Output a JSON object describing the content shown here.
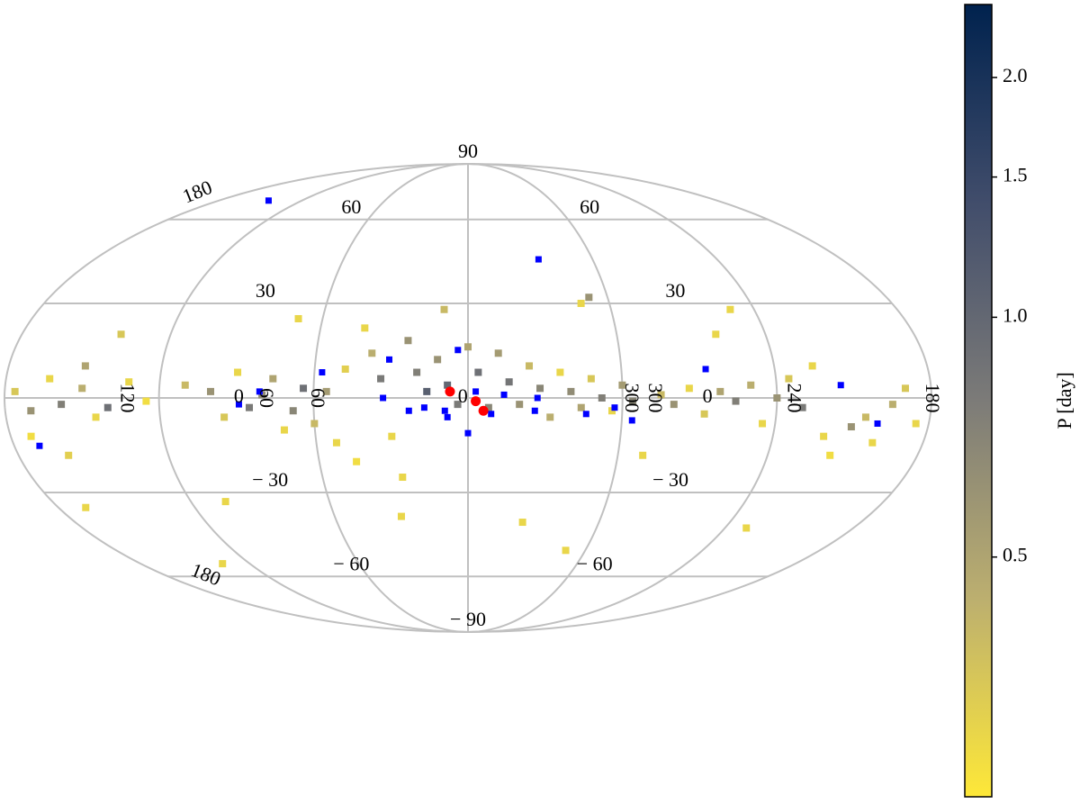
{
  "chart_data": {
    "type": "scatter",
    "projection": "mollweide",
    "meridians": [
      -180,
      -120,
      -60,
      0,
      60,
      120,
      180
    ],
    "parallels": [
      -60,
      -30,
      0,
      30,
      60
    ],
    "grid_color": "#c0c0c0",
    "xticks": [
      {
        "value": -133,
        "label": "120"
      },
      {
        "value": -89,
        "label": "0"
      },
      {
        "value": -79,
        "label": "60"
      },
      {
        "value": -59,
        "label": "60"
      },
      {
        "value": -2,
        "label": "0"
      },
      {
        "value": 63,
        "label": "300"
      },
      {
        "value": 72,
        "label": "300"
      },
      {
        "value": 93,
        "label": "0"
      },
      {
        "value": 126,
        "label": "240"
      },
      {
        "value": 180,
        "label": "180"
      }
    ],
    "yticks": [
      {
        "value": 90,
        "label": "90"
      },
      {
        "value": 60,
        "label": "60"
      },
      {
        "value": 30,
        "label": "30"
      },
      {
        "value": -30,
        "label": "− 30"
      },
      {
        "value": -60,
        "label": "− 60"
      },
      {
        "value": -90,
        "label": "− 90"
      }
    ],
    "edge_labels": [
      "180",
      "180"
    ],
    "x": [
      -176,
      -170,
      -163,
      -158,
      -150,
      -145,
      -172,
      -160,
      -150,
      -140,
      -132,
      -125,
      -110,
      -100,
      -95,
      -90,
      -85,
      -80,
      -76,
      -72,
      -68,
      -64,
      -60,
      -55,
      -52,
      -48,
      -45,
      -42,
      -38,
      -34,
      -30,
      -27,
      -24,
      -20,
      -16,
      -12,
      -8,
      -4,
      0,
      4,
      8,
      12,
      16,
      20,
      24,
      28,
      32,
      36,
      40,
      44,
      48,
      52,
      56,
      60,
      64,
      70,
      75,
      80,
      86,
      92,
      98,
      104,
      110,
      115,
      120,
      125,
      130,
      135,
      140,
      145,
      150,
      155,
      160,
      165,
      170,
      175,
      -168,
      -105,
      -30,
      50,
      48,
      52,
      130,
      -135,
      110,
      -70,
      -140,
      100,
      25,
      -10
    ],
    "y": [
      2,
      -4,
      6,
      -2,
      3,
      -6,
      -12,
      -18,
      10,
      -3,
      5,
      -1,
      4,
      2,
      -6,
      8,
      -3,
      1,
      6,
      -10,
      -4,
      3,
      -8,
      2,
      -14,
      9,
      -20,
      22,
      14,
      6,
      -12,
      -25,
      18,
      8,
      2,
      12,
      4,
      -2,
      16,
      8,
      -3,
      14,
      5,
      -2,
      10,
      3,
      -6,
      8,
      2,
      -3,
      6,
      0,
      -4,
      4,
      -1,
      -18,
      1,
      -2,
      3,
      -5,
      2,
      -1,
      4,
      -8,
      0,
      6,
      -3,
      10,
      -12,
      -18,
      -9,
      -6,
      -14,
      -2,
      3,
      -8,
      -35,
      -33,
      -38,
      -50,
      30,
      32,
      -42,
      -55,
      28,
      25,
      20,
      20,
      -40,
      28
    ],
    "values": [
      0.35,
      0.6,
      0.3,
      0.75,
      0.45,
      0.3,
      0.28,
      0.32,
      0.5,
      0.9,
      0.3,
      0.28,
      0.4,
      0.6,
      0.35,
      0.3,
      0.8,
      0.65,
      0.5,
      0.3,
      0.7,
      0.9,
      0.4,
      0.55,
      0.3,
      0.32,
      0.28,
      0.3,
      0.45,
      0.8,
      0.3,
      0.3,
      0.6,
      0.75,
      1.1,
      0.6,
      1.0,
      0.8,
      0.5,
      0.9,
      0.7,
      0.55,
      0.85,
      0.6,
      0.4,
      0.7,
      0.45,
      0.3,
      0.65,
      0.5,
      0.35,
      0.75,
      0.3,
      0.55,
      0.7,
      0.3,
      0.4,
      0.6,
      0.3,
      0.35,
      0.5,
      0.75,
      0.45,
      0.3,
      0.6,
      0.35,
      0.8,
      0.3,
      0.3,
      0.28,
      0.6,
      0.4,
      0.3,
      0.45,
      0.35,
      0.3,
      0.3,
      0.3,
      0.3,
      0.3,
      0.3,
      0.6,
      0.3,
      0.3,
      0.3,
      0.3,
      0.35,
      0.3,
      0.3,
      0.4
    ],
    "highlight": [
      {
        "color": "#0000ff",
        "marker": "square",
        "x": [
          -144,
          34,
          -4,
          -81,
          -89,
          -57,
          -31,
          -23,
          -9,
          -8,
          3,
          14,
          27,
          9,
          26,
          46,
          57,
          64,
          93,
          145,
          160,
          -170,
          0,
          -33,
          -17
        ],
        "y": [
          68,
          45,
          15,
          2,
          -2,
          8,
          12,
          -4,
          -4,
          -6,
          2,
          1,
          0,
          -5,
          -4,
          -5,
          -3,
          -7,
          9,
          4,
          -8,
          -15,
          -11,
          0,
          -3
        ]
      },
      {
        "color": "#ff0000",
        "marker": "circle",
        "x": [
          -7,
          3,
          6
        ],
        "y": [
          2,
          -1,
          -4
        ]
      }
    ],
    "colorbar": {
      "label": "P [day]",
      "clim": [
        0.25,
        2.47
      ],
      "log": true,
      "colormap": [
        "#fee838",
        "#bcaf6f",
        "#7c7b78",
        "#414d6b",
        "#00224e"
      ],
      "ticks": [
        {
          "value": 0.5,
          "label": "0.5"
        },
        {
          "value": 1,
          "label": "1.0"
        },
        {
          "value": 1.5,
          "label": "1.5"
        },
        {
          "value": 2,
          "label": "2.0"
        }
      ]
    }
  }
}
